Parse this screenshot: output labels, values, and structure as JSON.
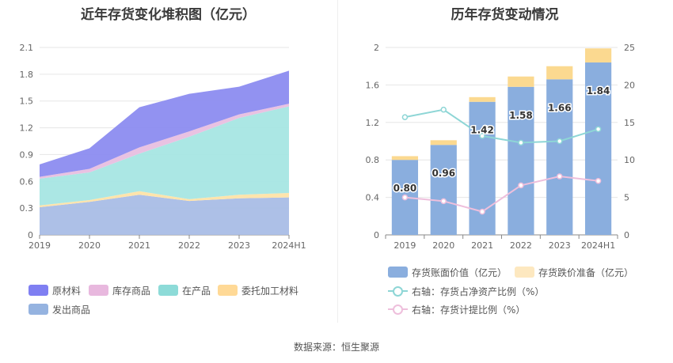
{
  "source": "数据来源：恒生聚源",
  "chart_data": [
    {
      "type": "area",
      "title": "近年存货变化堆积图（亿元）",
      "categories": [
        "2019",
        "2020",
        "2021",
        "2022",
        "2023",
        "2024H1"
      ],
      "ylim": [
        0,
        2.1
      ],
      "yticks": [
        "0",
        "0.3",
        "0.6",
        "0.9",
        "1.2",
        "1.5",
        "1.8",
        "2.1"
      ],
      "stack_order": [
        "发出商品",
        "委托加工材料",
        "在产品",
        "库存商品",
        "原材料"
      ],
      "series": [
        {
          "name": "原材料",
          "color": "#8c8cf0",
          "values": [
            0.14,
            0.23,
            0.45,
            0.42,
            0.31,
            0.37
          ]
        },
        {
          "name": "库存商品",
          "color": "#e8bfe0",
          "values": [
            0.02,
            0.04,
            0.07,
            0.06,
            0.04,
            0.03
          ]
        },
        {
          "name": "在产品",
          "color": "#a6e6e3",
          "values": [
            0.3,
            0.31,
            0.42,
            0.7,
            0.86,
            0.97
          ]
        },
        {
          "name": "委托加工材料",
          "color": "#ffe3a8",
          "values": [
            0.02,
            0.02,
            0.04,
            0.02,
            0.04,
            0.05
          ]
        },
        {
          "name": "发出商品",
          "color": "#a9bde6",
          "values": [
            0.31,
            0.37,
            0.45,
            0.38,
            0.41,
            0.42
          ]
        }
      ],
      "legend": [
        {
          "name": "原材料",
          "color": "#7f7ff2"
        },
        {
          "name": "库存商品",
          "color": "#e8b8de"
        },
        {
          "name": "在产品",
          "color": "#8ddbd8"
        },
        {
          "name": "委托加工材料",
          "color": "#ffd996"
        },
        {
          "name": "发出商品",
          "color": "#95b3e0"
        }
      ]
    },
    {
      "type": "bar",
      "title": "历年存货变动情况",
      "categories": [
        "2019",
        "2020",
        "2021",
        "2022",
        "2023",
        "2024H1"
      ],
      "ylim": [
        0,
        2
      ],
      "yticks": [
        "0",
        "0.4",
        "0.8",
        "1.2",
        "1.6",
        "2"
      ],
      "y2lim": [
        0,
        25
      ],
      "y2ticks": [
        "0",
        "5",
        "10",
        "15",
        "20",
        "25"
      ],
      "series": [
        {
          "name": "存货账面价值（亿元）",
          "kind": "bar",
          "color": "#8aaede",
          "values": [
            0.8,
            0.96,
            1.42,
            1.58,
            1.66,
            1.84
          ],
          "labels": [
            "0.80",
            "0.96",
            "1.42",
            "1.58",
            "1.66",
            "1.84"
          ]
        },
        {
          "name": "存货跌价准备（亿元）",
          "kind": "bar-stack",
          "color": "#fbd990",
          "values": [
            0.04,
            0.05,
            0.05,
            0.11,
            0.14,
            0.15
          ]
        },
        {
          "name": "右轴：存货占净资产比例（%）",
          "kind": "line",
          "axis": "right",
          "color": "#8ed6d6",
          "values": [
            15.7,
            16.7,
            13.2,
            12.3,
            12.5,
            14.1
          ]
        },
        {
          "name": "右轴：存货计提比例（%）",
          "kind": "line",
          "axis": "right",
          "color": "#eebfdc",
          "values": [
            5.0,
            4.5,
            3.1,
            6.6,
            7.8,
            7.2
          ]
        }
      ],
      "legend": [
        {
          "name": "存货账面价值（亿元）",
          "kind": "bar",
          "color": "#8aaede"
        },
        {
          "name": "存货跌价准备（亿元）",
          "kind": "bar",
          "color": "#fde8c0"
        },
        {
          "name": "右轴：存货占净资产比例（%）",
          "kind": "line",
          "color": "#8ed6d6"
        },
        {
          "name": "右轴：存货计提比例（%）",
          "kind": "line",
          "color": "#eebfdc"
        }
      ]
    }
  ]
}
